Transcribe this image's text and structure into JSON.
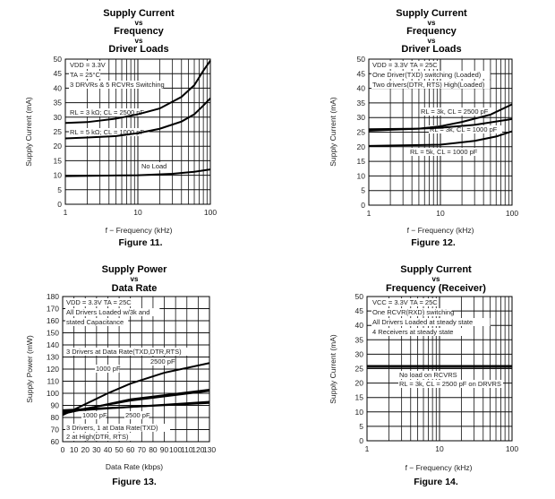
{
  "chart_data": [
    {
      "type": "line",
      "figure_label": "Figure 11.",
      "title_lines": [
        "Supply Current",
        "vs",
        "Frequency",
        "vs",
        "Driver Loads"
      ],
      "xlabel": "f − Frequency (kHz)",
      "ylabel": "Supply Current (mA)",
      "xscale": "log",
      "xlim": [
        1,
        100
      ],
      "ylim": [
        0,
        50
      ],
      "xticks": [
        "1",
        "10",
        "100"
      ],
      "yticks": [
        "0",
        "5",
        "10",
        "15",
        "20",
        "25",
        "30",
        "35",
        "40",
        "45",
        "50"
      ],
      "grid": true,
      "annotations": [
        "VDD = 3.3V",
        "TA = 25°C",
        "3 DRVRs & 5 RCVRs Switching",
        "RL = 3 kΩ; CL = 2500 pF",
        "RL = 5 kΩ; CL = 1000 pF",
        "No Load"
      ],
      "series": [
        {
          "name": "RL = 3 kΩ; CL = 2500 pF",
          "x": [
            1,
            2,
            5,
            10,
            20,
            40,
            60,
            80,
            100
          ],
          "y": [
            28,
            28.3,
            29.5,
            31,
            33,
            37,
            41,
            46,
            49.5
          ]
        },
        {
          "name": "RL = 5 kΩ; CL = 1000 pF",
          "x": [
            1,
            2,
            5,
            10,
            20,
            40,
            60,
            80,
            100
          ],
          "y": [
            22.7,
            23,
            23.5,
            24.5,
            26,
            28.5,
            31,
            34,
            36.5
          ]
        },
        {
          "name": "No Load",
          "x": [
            1,
            10,
            30,
            60,
            100
          ],
          "y": [
            9.7,
            10,
            10.5,
            11.2,
            12
          ]
        }
      ]
    },
    {
      "type": "line",
      "figure_label": "Figure 12.",
      "title_lines": [
        "Supply Current",
        "vs",
        "Frequency",
        "vs",
        "Driver Loads"
      ],
      "xlabel": "f − Frequency (kHz)",
      "ylabel": "Supply Current (mA)",
      "xscale": "log",
      "xlim": [
        1,
        100
      ],
      "ylim": [
        0,
        50
      ],
      "xticks": [
        "1",
        "10",
        "100"
      ],
      "yticks": [
        "0",
        "5",
        "10",
        "15",
        "20",
        "25",
        "30",
        "35",
        "40",
        "45",
        "50"
      ],
      "grid": true,
      "annotations": [
        "VDD = 3.3V TA = 25C",
        "One Driver(TXD) switching (Loaded)",
        "Two drivers(DTR, RTS) High(Loaded)",
        "RL = 3k, CL = 2500 pF",
        "RL = 3k, CL = 1000 pF",
        "RL = 5k, CL = 1000 pF"
      ],
      "series": [
        {
          "name": "RL = 3k, CL = 2500 pF",
          "x": [
            1,
            5,
            10,
            20,
            50,
            100
          ],
          "y": [
            26,
            26.2,
            27,
            28.5,
            31,
            34.5
          ]
        },
        {
          "name": "RL = 3k, CL = 1000 pF",
          "x": [
            1,
            10,
            30,
            100
          ],
          "y": [
            25.5,
            26.5,
            27.5,
            29.5
          ]
        },
        {
          "name": "RL = 5k, CL = 1000 pF",
          "x": [
            1,
            10,
            30,
            60,
            100
          ],
          "y": [
            20.3,
            20.7,
            22,
            23.5,
            25.3
          ]
        }
      ]
    },
    {
      "type": "line",
      "figure_label": "Figure 13.",
      "title_lines": [
        "Supply Power",
        "vs",
        "Data Rate"
      ],
      "xlabel": "Data Rate (kbps)",
      "ylabel": "Supply Power (mW)",
      "xscale": "linear",
      "xlim": [
        0,
        130
      ],
      "ylim": [
        60,
        180
      ],
      "xticks": [
        "0",
        "10",
        "20",
        "30",
        "40",
        "50",
        "60",
        "70",
        "80",
        "90",
        "100",
        "110",
        "120",
        "130"
      ],
      "yticks": [
        "60",
        "70",
        "80",
        "90",
        "100",
        "110",
        "120",
        "130",
        "140",
        "150",
        "160",
        "170",
        "180"
      ],
      "grid": true,
      "annotations": [
        "VDD = 3.3V TA = 25C",
        "All Drivers Loaded w/3k and",
        "stated Capacitance",
        "3 Drivers at Data Rate(TXD,DTR,RTS)",
        "2500 pF",
        "1000 pF",
        "1000 pF",
        "2500 pF",
        "3 Drivers, 1 at Data Rate(TXD)",
        "2 at High(DTR, RTS)"
      ],
      "series": [
        {
          "name": "2500 pF",
          "x": [
            0,
            40,
            60,
            90,
            130
          ],
          "y": [
            82,
            100,
            108,
            117,
            125
          ]
        },
        {
          "name": "1000 pF",
          "x": [
            0,
            60,
            130
          ],
          "y": [
            83,
            95,
            103
          ]
        },
        {
          "name": "2500 pF",
          "x": [
            0,
            60,
            130
          ],
          "y": [
            84,
            94,
            102
          ]
        },
        {
          "name": "1000 pF",
          "x": [
            0,
            130
          ],
          "y": [
            86,
            92
          ]
        },
        {
          "name": "2500 pF",
          "x": [
            0,
            130
          ],
          "y": [
            85,
            93
          ]
        }
      ]
    },
    {
      "type": "line",
      "figure_label": "Figure 14.",
      "title_lines": [
        "Supply Current",
        "vs",
        "Frequency (Receiver)"
      ],
      "xlabel": "f − Frequency (kHz)",
      "ylabel": "Supply Current (mA)",
      "xscale": "log",
      "xlim": [
        1,
        100
      ],
      "ylim": [
        0,
        50
      ],
      "xticks": [
        "1",
        "10",
        "100"
      ],
      "yticks": [
        "0",
        "5",
        "10",
        "15",
        "20",
        "25",
        "30",
        "35",
        "40",
        "45",
        "50"
      ],
      "grid": true,
      "annotations": [
        "VCC = 3.3V TA = 25C",
        "One RCVR(RXD) switching",
        "All Drivers Loaded at steady state",
        "4 Receivers at steady state",
        "No load on RCVRS",
        "RL = 3k, CL = 2500 pF on DRVRS"
      ],
      "series": [
        {
          "name": "No load on RCVRS",
          "x": [
            1,
            100
          ],
          "y": [
            25.5,
            25.5
          ]
        },
        {
          "name": "RL = 3k, CL = 2500 pF on DRVRS",
          "x": [
            1,
            100
          ],
          "y": [
            26,
            26
          ]
        }
      ]
    }
  ]
}
